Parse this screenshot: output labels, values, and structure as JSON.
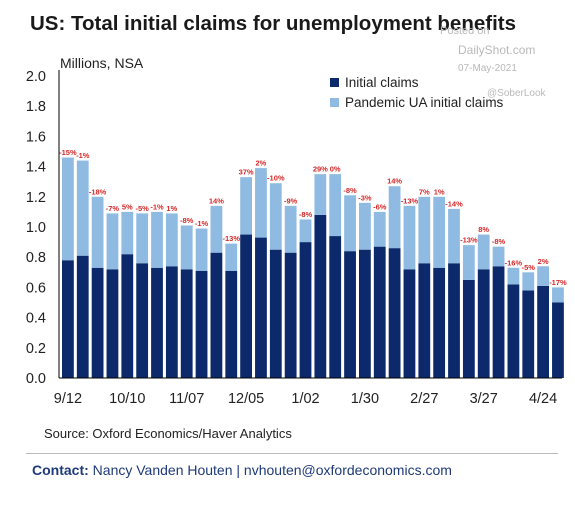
{
  "page": {
    "title": "US: Total initial claims for unemployment benefits",
    "units": "Millions, NSA",
    "source": "Source: Oxford Economics/Haver Analytics",
    "contact_label": "Contact:",
    "contact_text": "Nancy Vanden Houten | nvhouten@oxfordeconomics.com",
    "watermarks": {
      "posted_on": "Posted on",
      "site": "DailyShot.com",
      "date": "07-May-2021",
      "handle": "@SoberLook"
    }
  },
  "colors": {
    "initial_claims": "#0c2a6b",
    "pandemic_ua": "#8fbbe3",
    "percent_label": "#d62728",
    "axis": "#000000"
  },
  "chart_data": {
    "type": "bar",
    "stacked": true,
    "xlabel": "",
    "ylabel": "",
    "ylim": [
      0,
      2.0
    ],
    "yticks": [
      "0.0",
      "0.2",
      "0.4",
      "0.6",
      "0.8",
      "1.0",
      "1.2",
      "1.4",
      "1.6",
      "1.8",
      "2.0"
    ],
    "xtick_labels": [
      "9/12",
      "10/10",
      "11/07",
      "12/05",
      "1/02",
      "1/30",
      "2/27",
      "3/27",
      "4/24"
    ],
    "legend": {
      "position": "top-right",
      "entries": [
        "Initial claims",
        "Pandemic UA initial claims"
      ]
    },
    "series": [
      {
        "name": "Initial claims",
        "values": [
          0.78,
          0.81,
          0.73,
          0.72,
          0.82,
          0.76,
          0.73,
          0.74,
          0.72,
          0.71,
          0.83,
          0.71,
          0.95,
          0.93,
          0.85,
          0.83,
          0.9,
          1.08,
          0.94,
          0.84,
          0.85,
          0.87,
          0.86,
          0.72,
          0.76,
          0.73,
          0.76,
          0.65,
          0.72,
          0.74,
          0.62,
          0.58,
          0.61,
          0.5
        ]
      },
      {
        "name": "Pandemic UA initial claims",
        "values": [
          0.68,
          0.63,
          0.47,
          0.37,
          0.28,
          0.33,
          0.37,
          0.35,
          0.29,
          0.28,
          0.31,
          0.18,
          0.38,
          0.46,
          0.44,
          0.31,
          0.15,
          0.27,
          0.41,
          0.37,
          0.31,
          0.23,
          0.41,
          0.42,
          0.44,
          0.47,
          0.36,
          0.23,
          0.23,
          0.13,
          0.11,
          0.12,
          0.13,
          0.1
        ]
      }
    ],
    "percent_labels": [
      "-15%",
      "-1%",
      "-18%",
      "-7%",
      "5%",
      "-5%",
      "-1%",
      "1%",
      "-8%",
      "-1%",
      "14%",
      "-13%",
      "37%",
      "2%",
      "-10%",
      "-9%",
      "-8%",
      "29%",
      "0%",
      "-8%",
      "-3%",
      "-6%",
      "14%",
      "-13%",
      "7%",
      "1%",
      "-14%",
      "-13%",
      "8%",
      "-8%",
      "-16%",
      "-5%",
      "2%",
      "-17%"
    ]
  }
}
